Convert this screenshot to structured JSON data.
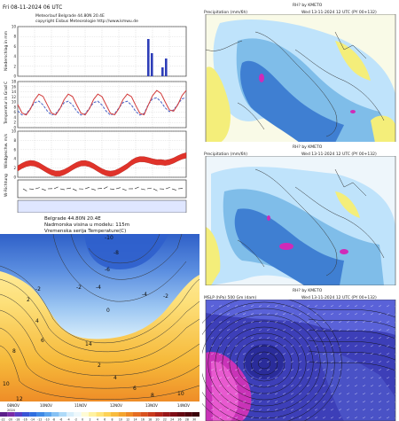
{
  "meteogram": {
    "date": "Fri 08-11-2024 06 UTC",
    "title1": "Meteorlauf Belgrade     44.80N 20.4E",
    "title2": "copyright Eisbus Meteorologie  http://www.kmwu.de",
    "precip_label": "Niederschlag in mm",
    "temp_label": "Temperatur in Grad C",
    "wind_label": "Windgeschw. m/s",
    "dir_label": "W-Richtung",
    "precip_ticks": [
      "10",
      "8",
      "6",
      "4",
      "2",
      "0"
    ],
    "temp_ticks": [
      "18",
      "16",
      "14",
      "12",
      "10",
      "8",
      "6",
      "4",
      "2",
      "0"
    ],
    "wind_ticks": [
      "10",
      "8",
      "6",
      "4",
      "2",
      "0"
    ],
    "colors": {
      "precip": "#2e3eb8",
      "temp_red": "#d23a3a",
      "temp_blue": "#4a64c8",
      "wind": "#e0332a"
    }
  },
  "cross_section": {
    "title1": "Belgrade    44.80N  20.4E",
    "title2": "Nadmorska visina u modelu: 115m",
    "title3": "Vremenska serija Temperature(C)",
    "contour_labels": [
      "-10",
      "-8",
      "-6",
      "-4",
      "-2",
      "-2",
      "-4",
      "-2",
      "0",
      "2",
      "4",
      "6",
      "8",
      "10",
      "12",
      "14",
      "2",
      "4",
      "6",
      "8",
      "10"
    ],
    "x_ticks": [
      "08NOV",
      "10NOV",
      "11NOV",
      "12NOV",
      "13NOV",
      "14NOV"
    ],
    "x_tick_sub": "2024",
    "colorbar": [
      "-22",
      "-20",
      "-18",
      "-16",
      "-14",
      "-12",
      "-10",
      "-8",
      "-6",
      "-4",
      "-2",
      "0",
      "2",
      "4",
      "6",
      "8",
      "10",
      "12",
      "14",
      "16",
      "18",
      "20",
      "22",
      "24",
      "26",
      "28",
      "30"
    ]
  },
  "map1": {
    "title_center": "RH? by KMETO",
    "left": "Precipitation (mm/6h)",
    "right": "Wed 13-11-2024 12 UTC (PY 00+132)"
  },
  "map2": {
    "title_center": "RH? by KMETO",
    "left": "Precipitation (mm/6h)",
    "right": "Wed 13-11-2024 12 UTC (PY 00+132)"
  },
  "map3": {
    "title_center": "RH? by KMETO",
    "left": "MSLP (hPa) 500 Gm (dam)",
    "right": "Wed 13-11-2024 12 UTC (PY 00+132)"
  }
}
